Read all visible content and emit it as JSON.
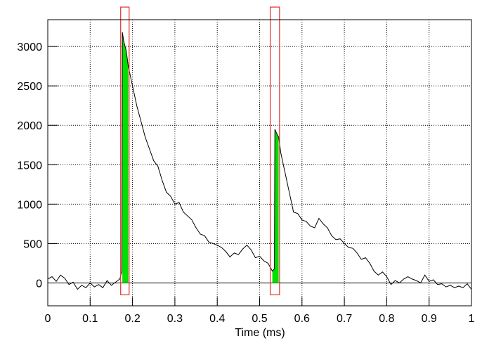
{
  "chart_data": {
    "type": "line",
    "x_label": "Time (ms)",
    "xlim": [
      0,
      1
    ],
    "ylim": [
      -290,
      3340
    ],
    "xticks": [
      0,
      0.1,
      0.2,
      0.3,
      0.4,
      0.5,
      0.6,
      0.7,
      0.8,
      0.9,
      1
    ],
    "yticks": [
      0,
      500,
      1000,
      1500,
      2000,
      2500,
      3000
    ],
    "grid": true,
    "series": [
      {
        "color": "#000000",
        "x": [
          0,
          0.01,
          0.02,
          0.03,
          0.04,
          0.05,
          0.06,
          0.07,
          0.08,
          0.09,
          0.1,
          0.11,
          0.12,
          0.13,
          0.14,
          0.15,
          0.16,
          0.17,
          0.175,
          0.176,
          0.18,
          0.185,
          0.19,
          0.2,
          0.21,
          0.22,
          0.23,
          0.24,
          0.25,
          0.26,
          0.27,
          0.28,
          0.29,
          0.3,
          0.31,
          0.32,
          0.33,
          0.34,
          0.35,
          0.36,
          0.37,
          0.38,
          0.39,
          0.4,
          0.41,
          0.42,
          0.43,
          0.44,
          0.45,
          0.46,
          0.47,
          0.48,
          0.49,
          0.5,
          0.51,
          0.52,
          0.53,
          0.535,
          0.536,
          0.54,
          0.545,
          0.55,
          0.56,
          0.57,
          0.58,
          0.59,
          0.6,
          0.61,
          0.62,
          0.63,
          0.64,
          0.65,
          0.66,
          0.67,
          0.68,
          0.69,
          0.7,
          0.71,
          0.72,
          0.73,
          0.74,
          0.75,
          0.76,
          0.77,
          0.78,
          0.79,
          0.8,
          0.81,
          0.82,
          0.83,
          0.84,
          0.85,
          0.86,
          0.87,
          0.88,
          0.89,
          0.9,
          0.91,
          0.92,
          0.93,
          0.94,
          0.95,
          0.96,
          0.97,
          0.98,
          0.99,
          1
        ],
        "values": [
          50,
          80,
          20,
          100,
          60,
          -20,
          10,
          -80,
          -30,
          -60,
          0,
          -50,
          -20,
          -60,
          30,
          -30,
          10,
          50,
          150,
          3180,
          3050,
          2950,
          2750,
          2500,
          2250,
          2050,
          1850,
          1700,
          1550,
          1480,
          1300,
          1150,
          1100,
          1000,
          1020,
          900,
          850,
          800,
          700,
          620,
          600,
          520,
          500,
          480,
          450,
          400,
          330,
          380,
          360,
          430,
          480,
          420,
          320,
          340,
          280,
          250,
          150,
          180,
          1950,
          1900,
          1850,
          1650,
          1400,
          1150,
          900,
          880,
          800,
          780,
          720,
          700,
          820,
          750,
          700,
          600,
          550,
          560,
          500,
          450,
          440,
          380,
          300,
          320,
          250,
          150,
          100,
          140,
          80,
          -20,
          30,
          0,
          50,
          80,
          50,
          30,
          0,
          100,
          20,
          40,
          -20,
          -10,
          -50,
          -30,
          -60,
          -40,
          -60,
          -10,
          -80
        ]
      }
    ],
    "fill_color": "#00e000",
    "fill_ranges": [
      [
        0.176,
        0.19
      ],
      [
        0.53,
        0.545
      ]
    ],
    "window_color": "#e03030",
    "windows": [
      [
        0.172,
        0.192
      ],
      [
        0.525,
        0.547
      ]
    ],
    "window_ylim": [
      -150,
      3500
    ]
  }
}
